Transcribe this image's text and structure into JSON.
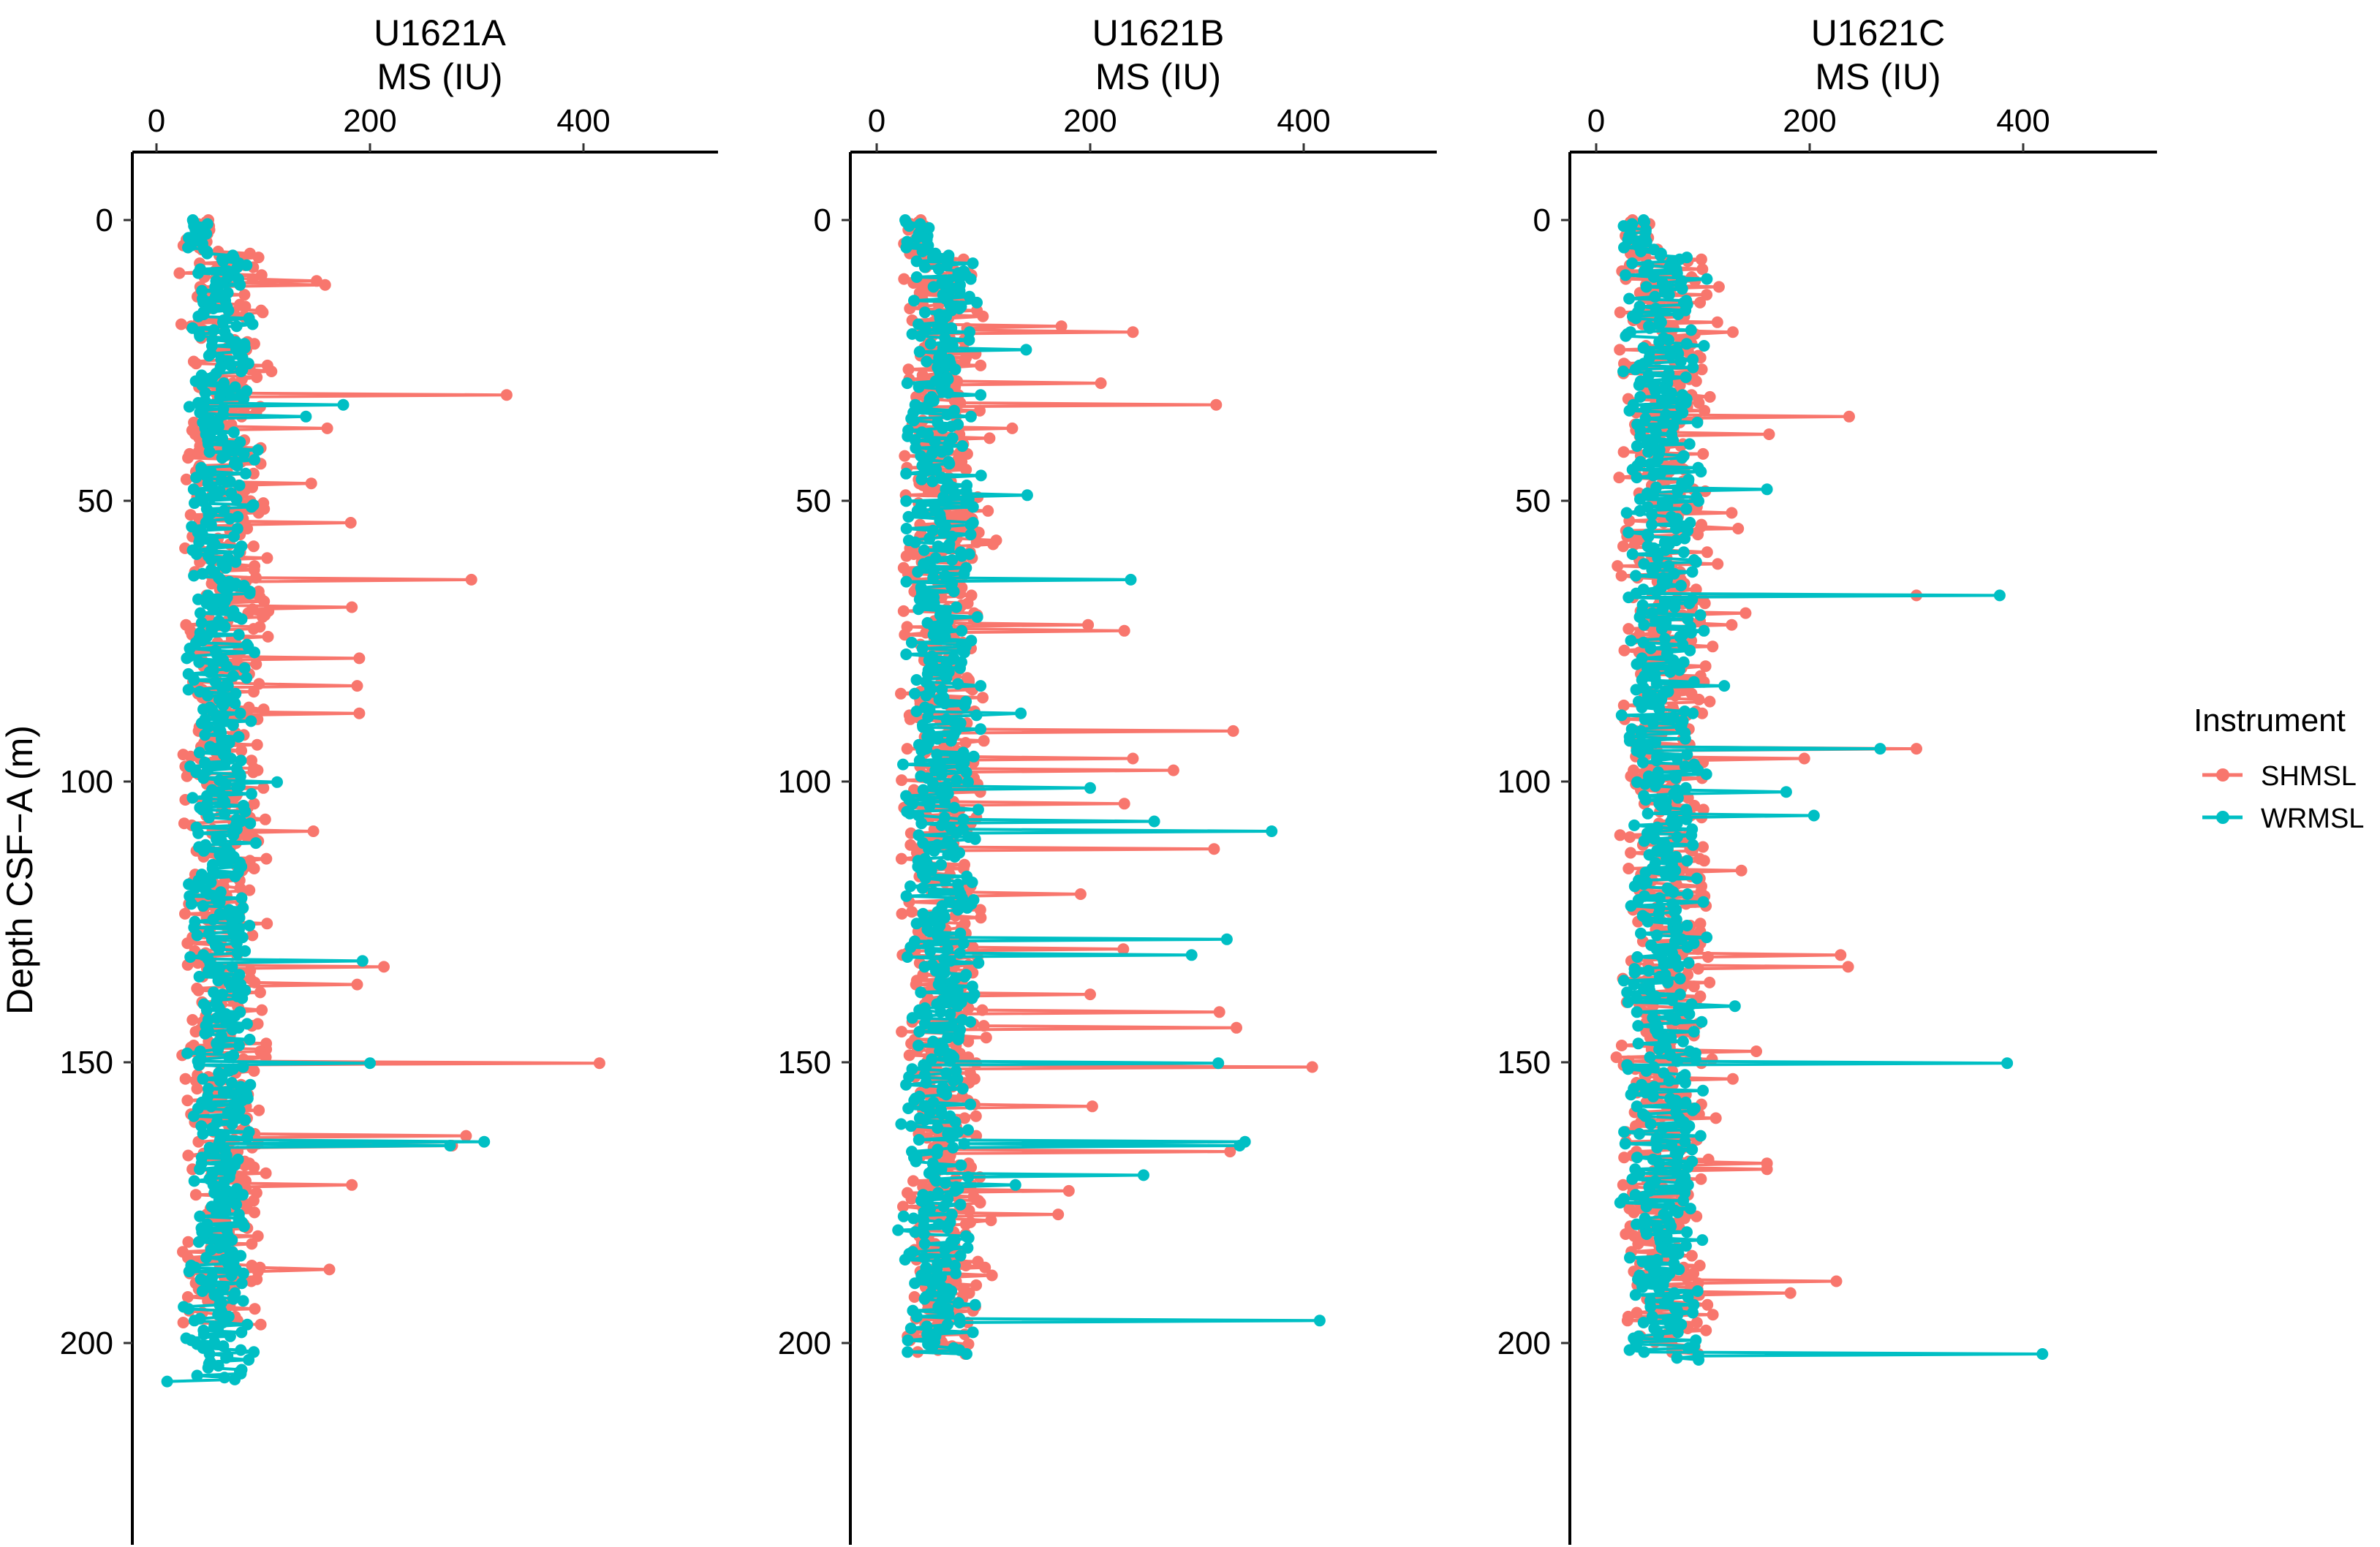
{
  "chart_data": {
    "type": "line",
    "title": "",
    "ylabel": "Depth CSF−A (m)",
    "ylim": [
      -12,
      236
    ],
    "y_reversed": true,
    "y_ticks": [
      0,
      50,
      100,
      150,
      200
    ],
    "x_ticks": [
      0,
      200,
      400
    ],
    "xlim": [
      -18,
      510
    ],
    "grid": false,
    "x_axis_position": "top",
    "legend": {
      "title": "Instrument",
      "placement": "right",
      "entries": [
        {
          "name": "SHMSL",
          "color": "#F8766D"
        },
        {
          "name": "WRMSL",
          "color": "#00BFC4"
        }
      ]
    },
    "panels": [
      {
        "title": "U1621A",
        "xlabel": "MS (IU)",
        "series": [
          {
            "name": "SHMSL",
            "depth_range": [
              0,
              197
            ],
            "baseline_range": [
              20,
              110
            ],
            "spikes": [
              [
                11,
                150
              ],
              [
                11.5,
                158
              ],
              [
                16,
                98
              ],
              [
                26,
                104
              ],
              [
                31,
                328
              ],
              [
                37,
                160
              ],
              [
                47,
                145
              ],
              [
                54,
                182
              ],
              [
                64,
                295
              ],
              [
                69,
                183
              ],
              [
                78,
                190
              ],
              [
                83,
                188
              ],
              [
                88,
                190
              ],
              [
                109,
                147
              ],
              [
                133,
                213
              ],
              [
                136,
                188
              ],
              [
                150,
                415
              ],
              [
                163,
                290
              ],
              [
                165,
                277
              ],
              [
                172,
                183
              ],
              [
                181,
                95
              ],
              [
                187,
                162
              ]
            ]
          },
          {
            "name": "WRMSL",
            "depth_range": [
              0,
              207
            ],
            "baseline_range": [
              25,
              95
            ],
            "spikes": [
              [
                33,
                175
              ],
              [
                35,
                140
              ],
              [
                41,
                95
              ],
              [
                100,
                113
              ],
              [
                132,
                193
              ],
              [
                150,
                200
              ],
              [
                164,
                307
              ],
              [
                165,
                275
              ],
              [
                194,
                30
              ],
              [
                207,
                10
              ]
            ]
          }
        ]
      },
      {
        "title": "U1621B",
        "xlabel": "MS (IU)",
        "series": [
          {
            "name": "SHMSL",
            "depth_range": [
              0,
              202
            ],
            "baseline_range": [
              15,
              110
            ],
            "spikes": [
              [
                19,
                173
              ],
              [
                20,
                240
              ],
              [
                29,
                210
              ],
              [
                33,
                318
              ],
              [
                37,
                127
              ],
              [
                47,
                40
              ],
              [
                57,
                112
              ],
              [
                72,
                198
              ],
              [
                73,
                232
              ],
              [
                91,
                334
              ],
              [
                96,
                240
              ],
              [
                98,
                278
              ],
              [
                104,
                232
              ],
              [
                112,
                316
              ],
              [
                120,
                191
              ],
              [
                130,
                231
              ],
              [
                138,
                200
              ],
              [
                141,
                321
              ],
              [
                144,
                337
              ],
              [
                151,
                408
              ],
              [
                158,
                202
              ],
              [
                166,
                331
              ],
              [
                173,
                180
              ],
              [
                177,
                170
              ],
              [
                188,
                108
              ]
            ]
          },
          {
            "name": "WRMSL",
            "depth_range": [
              0,
              202
            ],
            "baseline_range": [
              20,
              100
            ],
            "spikes": [
              [
                23,
                140
              ],
              [
                49,
                141
              ],
              [
                64,
                238
              ],
              [
                88,
                135
              ],
              [
                101,
                200
              ],
              [
                107,
                260
              ],
              [
                109,
                370
              ],
              [
                128,
                328
              ],
              [
                131,
                295
              ],
              [
                150,
                320
              ],
              [
                164,
                345
              ],
              [
                165,
                340
              ],
              [
                170,
                250
              ],
              [
                172,
                130
              ],
              [
                180,
                20
              ],
              [
                196,
                415
              ]
            ]
          }
        ]
      },
      {
        "title": "U1621C",
        "xlabel": "MS (IU)",
        "series": [
          {
            "name": "SHMSL",
            "depth_range": [
              0,
              202
            ],
            "baseline_range": [
              15,
              115
            ],
            "spikes": [
              [
                12,
                115
              ],
              [
                20,
                128
              ],
              [
                35,
                237
              ],
              [
                38,
                162
              ],
              [
                52,
                127
              ],
              [
                55,
                133
              ],
              [
                67,
                300
              ],
              [
                70,
                140
              ],
              [
                72,
                127
              ],
              [
                94,
                300
              ],
              [
                96,
                195
              ],
              [
                116,
                136
              ],
              [
                131,
                229
              ],
              [
                133,
                236
              ],
              [
                148,
                150
              ],
              [
                153,
                128
              ],
              [
                168,
                160
              ],
              [
                169,
                160
              ],
              [
                189,
                225
              ],
              [
                191,
                182
              ]
            ]
          },
          {
            "name": "WRMSL",
            "depth_range": [
              0,
              203
            ],
            "baseline_range": [
              20,
              105
            ],
            "spikes": [
              [
                48,
                160
              ],
              [
                67,
                378
              ],
              [
                83,
                120
              ],
              [
                94,
                266
              ],
              [
                102,
                178
              ],
              [
                106,
                204
              ],
              [
                140,
                130
              ],
              [
                150,
                385
              ],
              [
                155,
                100
              ],
              [
                202,
                418
              ]
            ]
          }
        ]
      }
    ]
  }
}
